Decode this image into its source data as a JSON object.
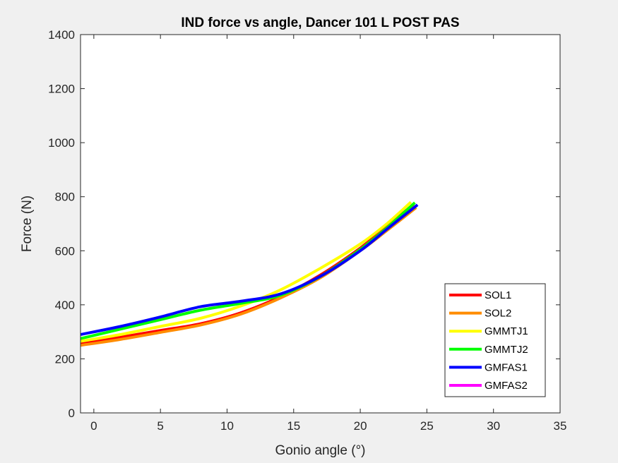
{
  "chart_data": {
    "type": "line",
    "title": "IND force vs angle, Dancer 101 L POST PAS",
    "xlabel": "Gonio angle (°)",
    "ylabel": "Force (N)",
    "xlim": [
      -1,
      35
    ],
    "ylim": [
      0,
      1400
    ],
    "xticks": [
      0,
      5,
      10,
      15,
      20,
      25,
      30,
      35
    ],
    "yticks": [
      0,
      200,
      400,
      600,
      800,
      1000,
      1200,
      1400
    ],
    "grid": false,
    "legend_position": "bottom-right",
    "series": [
      {
        "name": "SOL1",
        "color": "#ff0000",
        "x": [
          -1,
          2,
          5,
          8,
          11,
          14,
          17,
          20,
          22,
          24
        ],
        "y": [
          255,
          280,
          305,
          330,
          370,
          430,
          510,
          610,
          690,
          772
        ]
      },
      {
        "name": "SOL2",
        "color": "#ff8c00",
        "x": [
          -1,
          2,
          5,
          8,
          11,
          14,
          17,
          20,
          22,
          24.2
        ],
        "y": [
          250,
          272,
          298,
          325,
          365,
          425,
          500,
          600,
          675,
          760
        ]
      },
      {
        "name": "GMMTJ1",
        "color": "#ffff00",
        "x": [
          -1,
          2,
          5,
          8,
          11,
          14,
          17,
          20,
          22,
          23.8
        ],
        "y": [
          265,
          290,
          320,
          350,
          395,
          455,
          535,
          625,
          700,
          780
        ]
      },
      {
        "name": "GMMTJ2",
        "color": "#00ff00",
        "x": [
          -1,
          2,
          5,
          8,
          11,
          14,
          17,
          20,
          22,
          24.1
        ],
        "y": [
          275,
          310,
          345,
          380,
          405,
          435,
          505,
          605,
          685,
          778
        ]
      },
      {
        "name": "GMFAS1",
        "color": "#0000ff",
        "x": [
          -1,
          2,
          5,
          8,
          11,
          14,
          17,
          20,
          22,
          24.3
        ],
        "y": [
          290,
          320,
          355,
          393,
          413,
          440,
          505,
          600,
          680,
          770
        ]
      },
      {
        "name": "GMFAS2",
        "color": "#ff00ff",
        "x": [],
        "y": []
      }
    ]
  }
}
